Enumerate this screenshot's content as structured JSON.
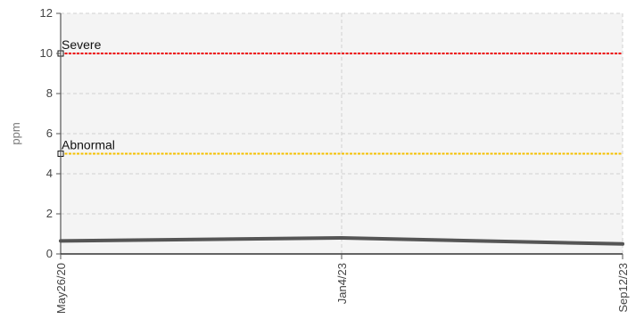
{
  "chart_data": {
    "type": "line",
    "title": "",
    "xlabel": "",
    "ylabel": "ppm",
    "ylim": [
      0,
      12
    ],
    "y_ticks": [
      "0",
      "2",
      "4",
      "6",
      "8",
      "10",
      "12"
    ],
    "x_ticks": [
      "May26/20",
      "Jan4/23",
      "Sep12/23"
    ],
    "grid": true,
    "reference_lines": [
      {
        "label": "Severe",
        "value": 10,
        "color": "#ee0000"
      },
      {
        "label": "Abnormal",
        "value": 5,
        "color": "#f5c000"
      }
    ],
    "series": [
      {
        "color": "#555555",
        "points": [
          {
            "x": "May26/20",
            "y": 0.65
          },
          {
            "x": "Jan4/23",
            "y": 0.8
          },
          {
            "x": "Sep12/23",
            "y": 0.5
          }
        ]
      }
    ]
  }
}
